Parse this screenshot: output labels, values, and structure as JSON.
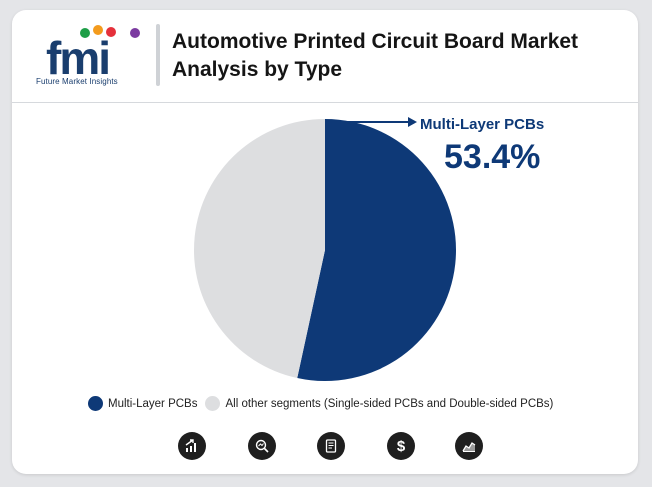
{
  "header": {
    "logo_text": "fmi",
    "logo_tagline": "Future Market Insights",
    "title": "Automotive Printed Circuit Board Market Analysis by Type"
  },
  "callout": {
    "label": "Multi-Layer PCBs",
    "value": "53.4%"
  },
  "colors": {
    "primary": "#0e3977",
    "other": "#dddee0"
  },
  "chart_data": {
    "type": "pie",
    "title": "Automotive Printed Circuit Board Market Analysis by Type",
    "slices": [
      {
        "label": "Multi-Layer PCBs",
        "value": 53.4,
        "color": "#0e3977"
      },
      {
        "label": "All other segments (Single-sided PCBs and Double-sided PCBs)",
        "value": 46.6,
        "color": "#dddee0"
      }
    ],
    "start_angle_deg": 0,
    "direction": "clockwise",
    "legend_position": "bottom"
  },
  "footer_icons": [
    "bar-growth-icon",
    "magnifier-chart-icon",
    "report-document-icon",
    "dollar-icon",
    "area-chart-icon"
  ]
}
